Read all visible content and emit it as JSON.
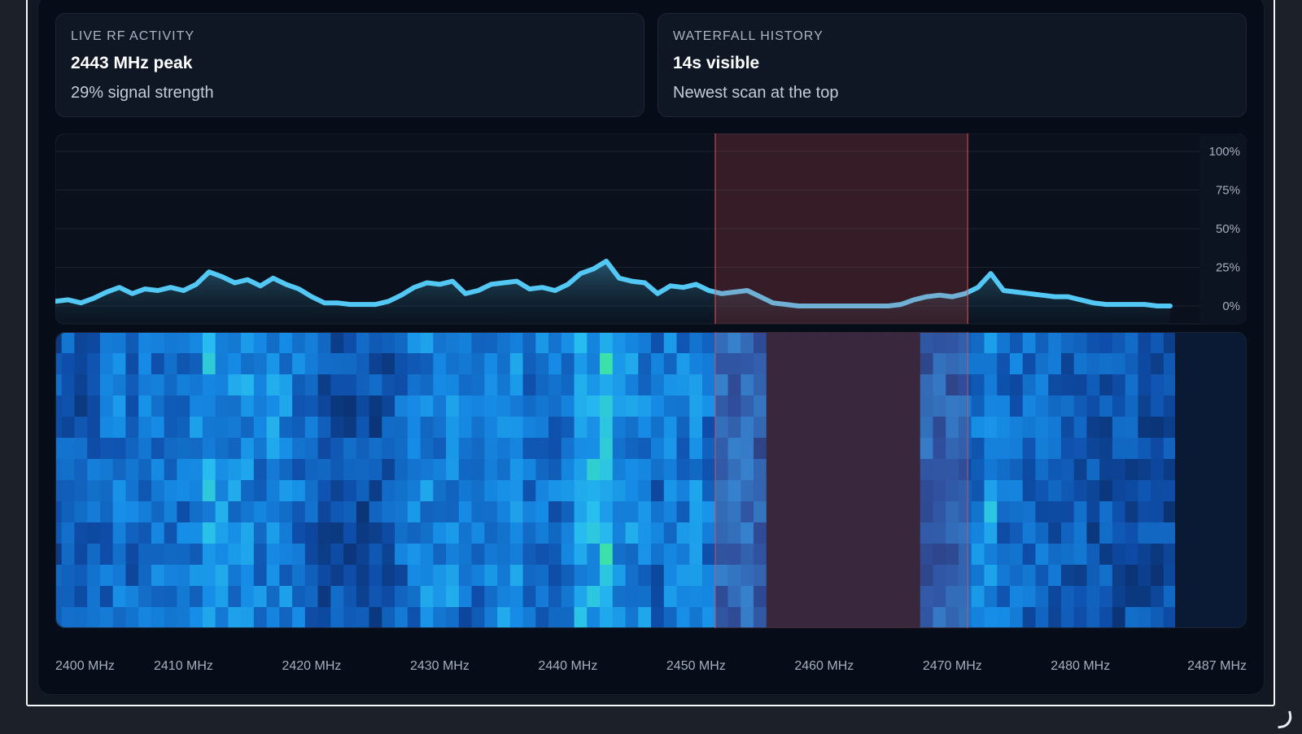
{
  "cards": {
    "live": {
      "kicker": "LIVE RF ACTIVITY",
      "headline": "2443 MHz peak",
      "sub": "29% signal strength"
    },
    "waterfall": {
      "kicker": "WATERFALL HISTORY",
      "headline": "14s visible",
      "sub": "Newest scan at the top"
    }
  },
  "colors": {
    "line": "#53c8f5",
    "highlight": "#e05252",
    "waterfall_low": "#0b2e66",
    "waterfall_high": "#2fe0a0"
  },
  "chart_data": {
    "type": "area",
    "x_unit": "MHz",
    "x_ticks": [
      "2400 MHz",
      "2410 MHz",
      "2420 MHz",
      "2430 MHz",
      "2440 MHz",
      "2450 MHz",
      "2460 MHz",
      "2470 MHz",
      "2480 MHz",
      "2487 MHz"
    ],
    "x_tick_values": [
      2400,
      2410,
      2420,
      2430,
      2440,
      2450,
      2460,
      2470,
      2480,
      2487
    ],
    "y_ticks": [
      "100%",
      "75%",
      "50%",
      "25%",
      "0%"
    ],
    "y_tick_values": [
      100,
      75,
      50,
      25,
      0
    ],
    "xlim": [
      2400,
      2487
    ],
    "ylim": [
      0,
      100
    ],
    "grid": true,
    "highlight_band": [
      2451.5,
      2471.2
    ],
    "spectrum": {
      "x": [
        2400,
        2401,
        2402,
        2403,
        2404,
        2405,
        2406,
        2407,
        2408,
        2409,
        2410,
        2411,
        2412,
        2413,
        2414,
        2415,
        2416,
        2417,
        2418,
        2419,
        2420,
        2421,
        2422,
        2423,
        2424,
        2425,
        2426,
        2427,
        2428,
        2429,
        2430,
        2431,
        2432,
        2433,
        2434,
        2435,
        2436,
        2437,
        2438,
        2439,
        2440,
        2441,
        2442,
        2443,
        2444,
        2445,
        2446,
        2447,
        2448,
        2449,
        2450,
        2451,
        2452,
        2453,
        2454,
        2455,
        2456,
        2457,
        2458,
        2459,
        2460,
        2461,
        2462,
        2463,
        2464,
        2465,
        2466,
        2467,
        2468,
        2469,
        2470,
        2471,
        2472,
        2473,
        2474,
        2475,
        2476,
        2477,
        2478,
        2479,
        2480,
        2481,
        2482,
        2483,
        2484,
        2485,
        2486,
        2487
      ],
      "y": [
        3,
        4,
        2,
        5,
        9,
        12,
        8,
        11,
        10,
        12,
        10,
        14,
        22,
        19,
        15,
        17,
        13,
        18,
        14,
        11,
        6,
        2,
        2,
        1,
        1,
        1,
        3,
        7,
        12,
        15,
        14,
        16,
        8,
        10,
        14,
        15,
        16,
        11,
        12,
        10,
        14,
        21,
        24,
        29,
        18,
        16,
        15,
        8,
        13,
        12,
        14,
        10,
        8,
        9,
        10,
        6,
        2,
        1,
        0,
        0,
        0,
        0,
        0,
        0,
        0,
        0,
        1,
        4,
        6,
        7,
        6,
        8,
        12,
        21,
        10,
        9,
        8,
        7,
        6,
        6,
        4,
        2,
        1,
        1,
        1,
        1,
        0,
        0
      ]
    },
    "waterfall": {
      "rows": 14,
      "seconds_visible": 14,
      "order": "newest at top"
    }
  }
}
